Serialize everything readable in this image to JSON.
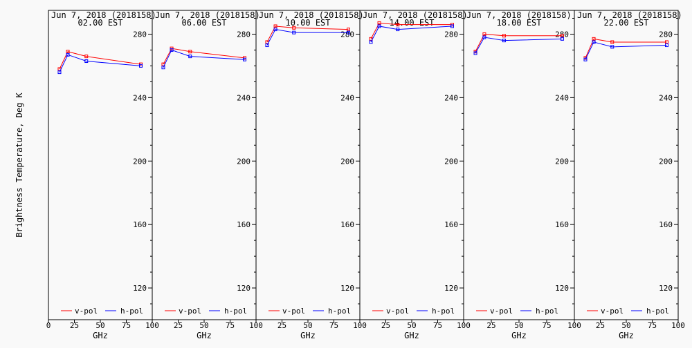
{
  "ylabel": "Brightness Temperature, Deg K",
  "xlabel": "GHz",
  "legend": {
    "v": "v-pol",
    "h": "h-pol"
  },
  "colors": {
    "v": "#ff0000",
    "h": "#0000ff",
    "axis": "#000000",
    "background": "#f9f9f9"
  },
  "x_ticks": [
    "0",
    "25",
    "50",
    "75",
    "100"
  ],
  "y_ticks": [
    "120",
    "160",
    "200",
    "240",
    "280"
  ],
  "chart_data": {
    "type": "line",
    "xlim": [
      0,
      100
    ],
    "ylim": [
      100,
      295
    ],
    "frequencies_ghz": [
      10.65,
      18.7,
      36.5,
      89.0
    ],
    "panels": [
      {
        "title_line1": "Jun  7, 2018 (2018158)",
        "title_line2": "02.00 EST",
        "series": [
          {
            "name": "v-pol",
            "values": [
              258,
              269,
              266,
              261
            ]
          },
          {
            "name": "h-pol",
            "values": [
              256,
              267,
              263,
              260
            ]
          }
        ]
      },
      {
        "title_line1": "Jun  7, 2018 (2018158)",
        "title_line2": "06.00 EST",
        "series": [
          {
            "name": "v-pol",
            "values": [
              261,
              271,
              269,
              265
            ]
          },
          {
            "name": "h-pol",
            "values": [
              259,
              270,
              266,
              264
            ]
          }
        ]
      },
      {
        "title_line1": "Jun  7, 2018 (2018158)",
        "title_line2": "10.00 EST",
        "series": [
          {
            "name": "v-pol",
            "values": [
              275,
              285,
              284,
              283
            ]
          },
          {
            "name": "h-pol",
            "values": [
              273,
              283,
              281,
              281
            ]
          }
        ]
      },
      {
        "title_line1": "Jun  7, 2018 (2018158)",
        "title_line2": "14.00 EST",
        "series": [
          {
            "name": "v-pol",
            "values": [
              277,
              287,
              286,
              286
            ]
          },
          {
            "name": "h-pol",
            "values": [
              275,
              285,
              283,
              285
            ]
          }
        ]
      },
      {
        "title_line1": "Jun  7, 2018 (2018158)",
        "title_line2": "18.00 EST",
        "series": [
          {
            "name": "v-pol",
            "values": [
              269,
              280,
              279,
              279
            ]
          },
          {
            "name": "h-pol",
            "values": [
              268,
              278,
              276,
              277
            ]
          }
        ]
      },
      {
        "title_line1": "Jun  7, 2018 (2018158)",
        "title_line2": "22.00 EST",
        "series": [
          {
            "name": "v-pol",
            "values": [
              265,
              277,
              275,
              275
            ]
          },
          {
            "name": "h-pol",
            "values": [
              264,
              275,
              272,
              273
            ]
          }
        ]
      }
    ]
  }
}
